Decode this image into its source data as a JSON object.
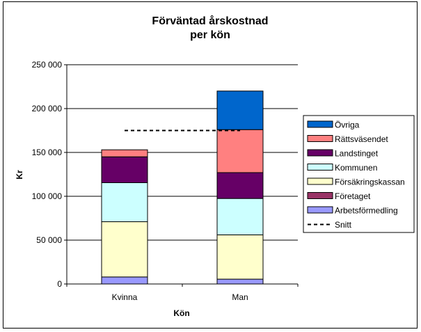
{
  "chart_data": {
    "type": "bar",
    "stacked": true,
    "title": "Förväntad årskostnad per kön",
    "title_lines": [
      "Förväntad årskostnad",
      "per kön"
    ],
    "xlabel": "Kön",
    "ylabel": "Kr",
    "ylim": [
      0,
      250000
    ],
    "yticks": [
      0,
      50000,
      100000,
      150000,
      200000,
      250000
    ],
    "ytick_labels": [
      "0",
      "50 000",
      "100 000",
      "150 000",
      "200 000",
      "250 000"
    ],
    "grid": true,
    "legend_position": "right",
    "categories": [
      "Kvinna",
      "Man"
    ],
    "series": [
      {
        "name": "Arbetsförmedling",
        "color": "#9999ff",
        "values": [
          8000,
          5500
        ]
      },
      {
        "name": "Företaget",
        "color": "#993366",
        "values": [
          0,
          0
        ]
      },
      {
        "name": "Försäkringskassan",
        "color": "#ffffcc",
        "values": [
          63000,
          50500
        ]
      },
      {
        "name": "Kommunen",
        "color": "#ccffff",
        "values": [
          44500,
          41500
        ]
      },
      {
        "name": "Landstinget",
        "color": "#660066",
        "values": [
          29500,
          29500
        ]
      },
      {
        "name": "Rättsväsendet",
        "color": "#ff8080",
        "values": [
          8000,
          49000
        ]
      },
      {
        "name": "Övriga",
        "color": "#0066cc",
        "values": [
          0,
          44000
        ]
      }
    ],
    "reference_line": {
      "name": "Snitt",
      "value": 175000,
      "style": "dashed",
      "color": "#000000"
    },
    "legend_order": [
      "Övriga",
      "Rättsväsendet",
      "Landstinget",
      "Kommunen",
      "Försäkringskassan",
      "Företaget",
      "Arbetsförmedling",
      "Snitt"
    ]
  }
}
